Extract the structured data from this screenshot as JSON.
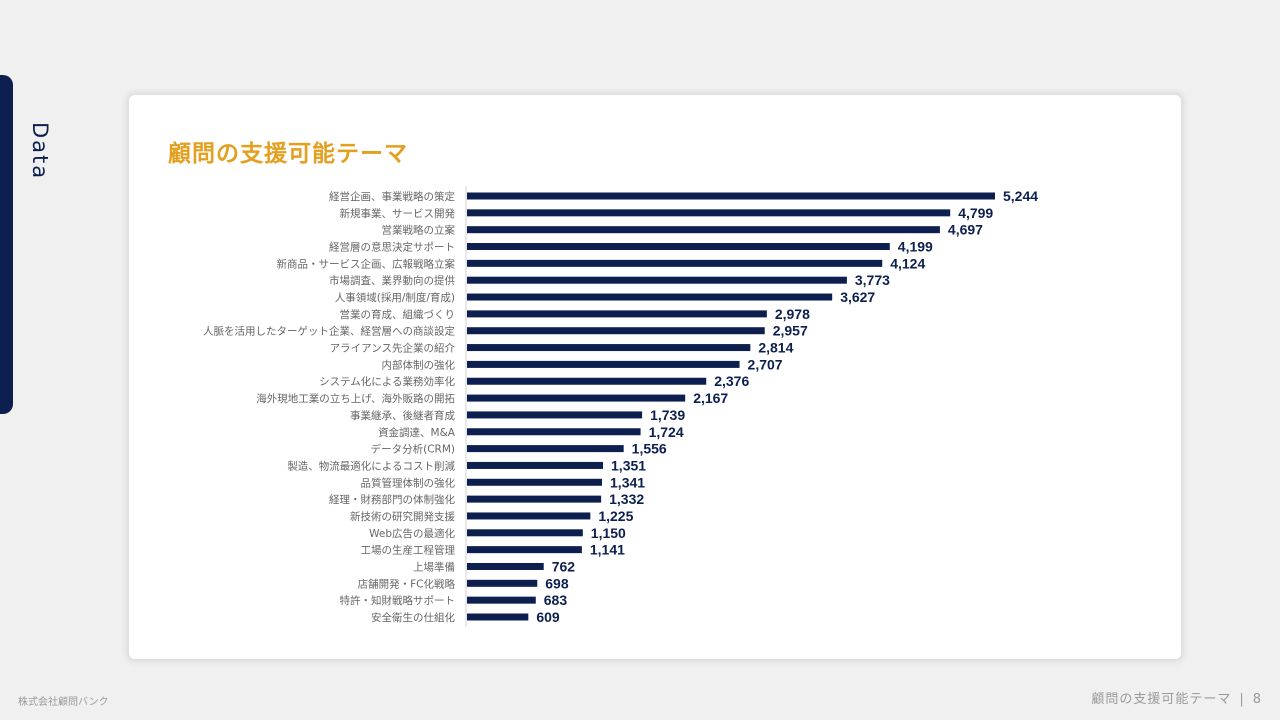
{
  "side_label": "Data",
  "card_title": "顧問の支援可能テーマ",
  "footer": {
    "company": "株式会社顧問バンク",
    "section": "顧問の支援可能テーマ",
    "separator": "|",
    "page": "8"
  },
  "colors": {
    "bar": "#0d1f4f",
    "title": "#e39f1e",
    "value_label": "#0d1f4f",
    "category_label": "#666666"
  },
  "chart_data": {
    "type": "bar",
    "orientation": "horizontal",
    "categories": [
      "経営企画、事業戦略の策定",
      "新規事業、サービス開発",
      "営業戦略の立案",
      "経営層の意思決定サポート",
      "新商品・サービス企画、広報戦略立案",
      "市場調査、業界動向の提供",
      "人事領域(採用/制度/育成)",
      "営業の育成、組織づくり",
      "人脈を活用したターゲット企業、経営層への商談設定",
      "アライアンス先企業の紹介",
      "内部体制の強化",
      "システム化による業務効率化",
      "海外現地工業の立ち上げ、海外販路の開拓",
      "事業継承、後継者育成",
      "資金調達、M&A",
      "データ分析(CRM)",
      "製造、物流最適化によるコスト削減",
      "品質管理体制の強化",
      "経理・財務部門の体制強化",
      "新技術の研究開発支援",
      "Web広告の最適化",
      "工場の生産工程管理",
      "上場準備",
      "店舗開発・FC化戦略",
      "特許・知財戦略サポート",
      "安全衛生の仕組化"
    ],
    "values": [
      5244,
      4799,
      4697,
      4199,
      4124,
      3773,
      3627,
      2978,
      2957,
      2814,
      2707,
      2376,
      2167,
      1739,
      1724,
      1556,
      1351,
      1341,
      1332,
      1225,
      1150,
      1141,
      762,
      698,
      683,
      609
    ],
    "value_labels": [
      "5,244",
      "4,799",
      "4,697",
      "4,199",
      "4,124",
      "3,773",
      "3,627",
      "2,978",
      "2,957",
      "2,814",
      "2,707",
      "2,376",
      "2,167",
      "1,739",
      "1,724",
      "1,556",
      "1,351",
      "1,341",
      "1,332",
      "1,225",
      "1,150",
      "1,141",
      "762",
      "698",
      "683",
      "609"
    ],
    "title": "顧問の支援可能テーマ",
    "xlabel": "",
    "ylabel": "",
    "grid": false,
    "legend": "none"
  }
}
